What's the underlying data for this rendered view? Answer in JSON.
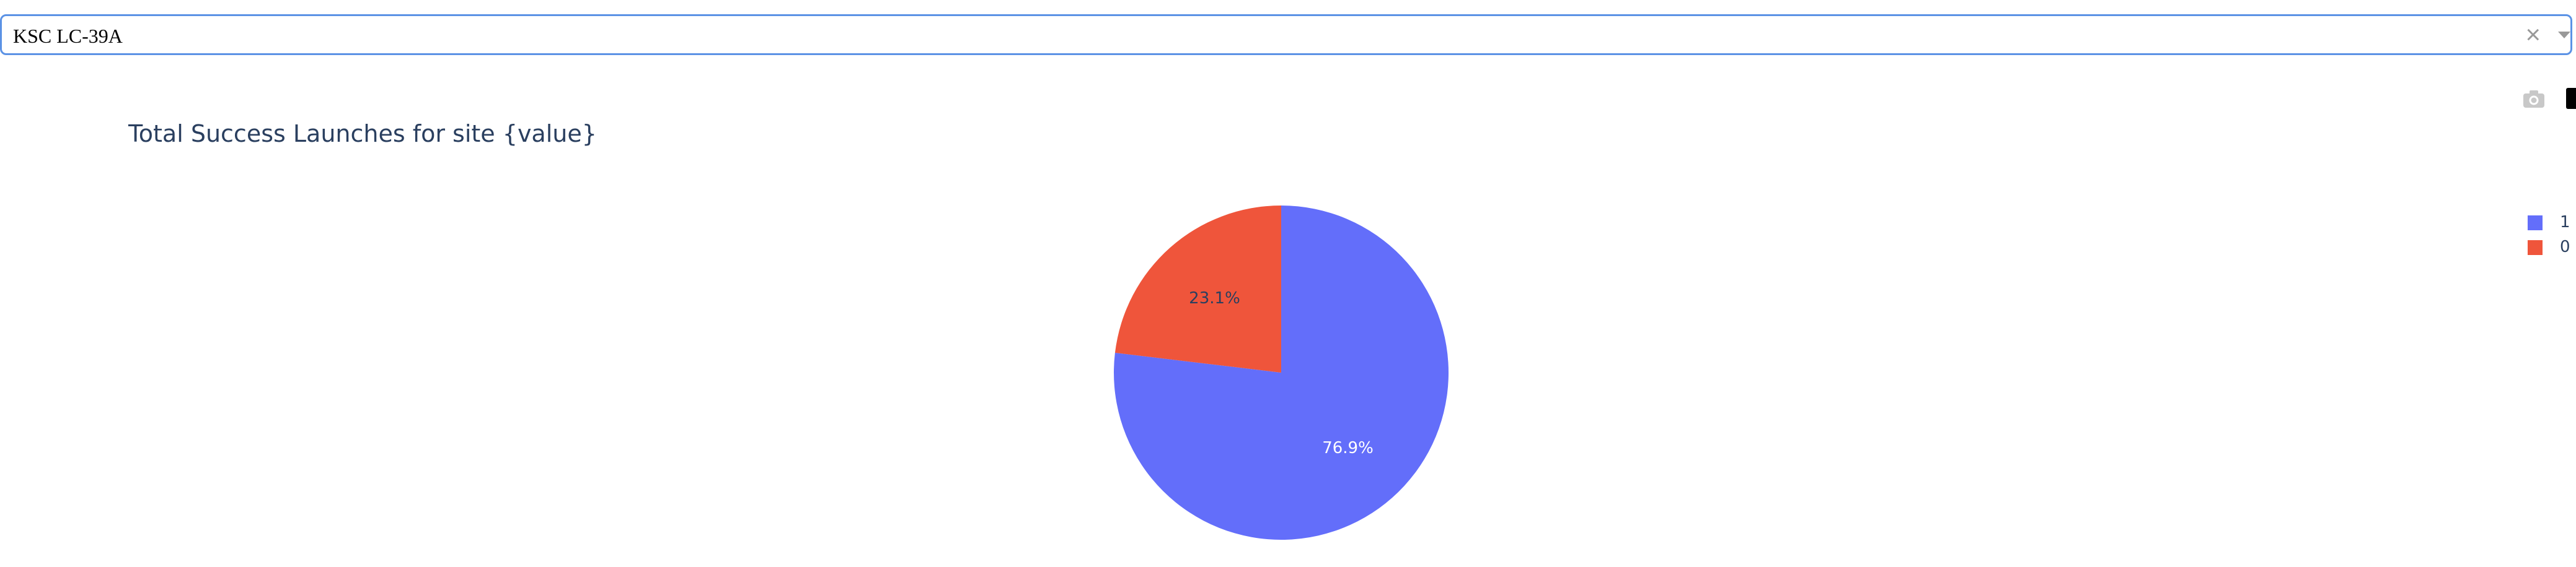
{
  "dropdown": {
    "value": "KSC LC-39A",
    "clear_symbol": "×"
  },
  "modebar": {
    "icons": [
      "camera-icon",
      "plotly-logo-icon"
    ]
  },
  "colors": {
    "series_1": "#636efa",
    "series_0": "#ef553b",
    "dropdown_border": "#5b92e5",
    "title_text": "#2a3f5f"
  },
  "chart_data": {
    "type": "pie",
    "title": "Total Success Launches for site {value}",
    "categories": [
      "1",
      "0"
    ],
    "values": [
      76.9,
      23.1
    ],
    "labels": [
      "76.9%",
      "23.1%"
    ],
    "colors": [
      "#636efa",
      "#ef553b"
    ],
    "legend": {
      "placement": "right",
      "entries": [
        "1",
        "0"
      ]
    }
  }
}
